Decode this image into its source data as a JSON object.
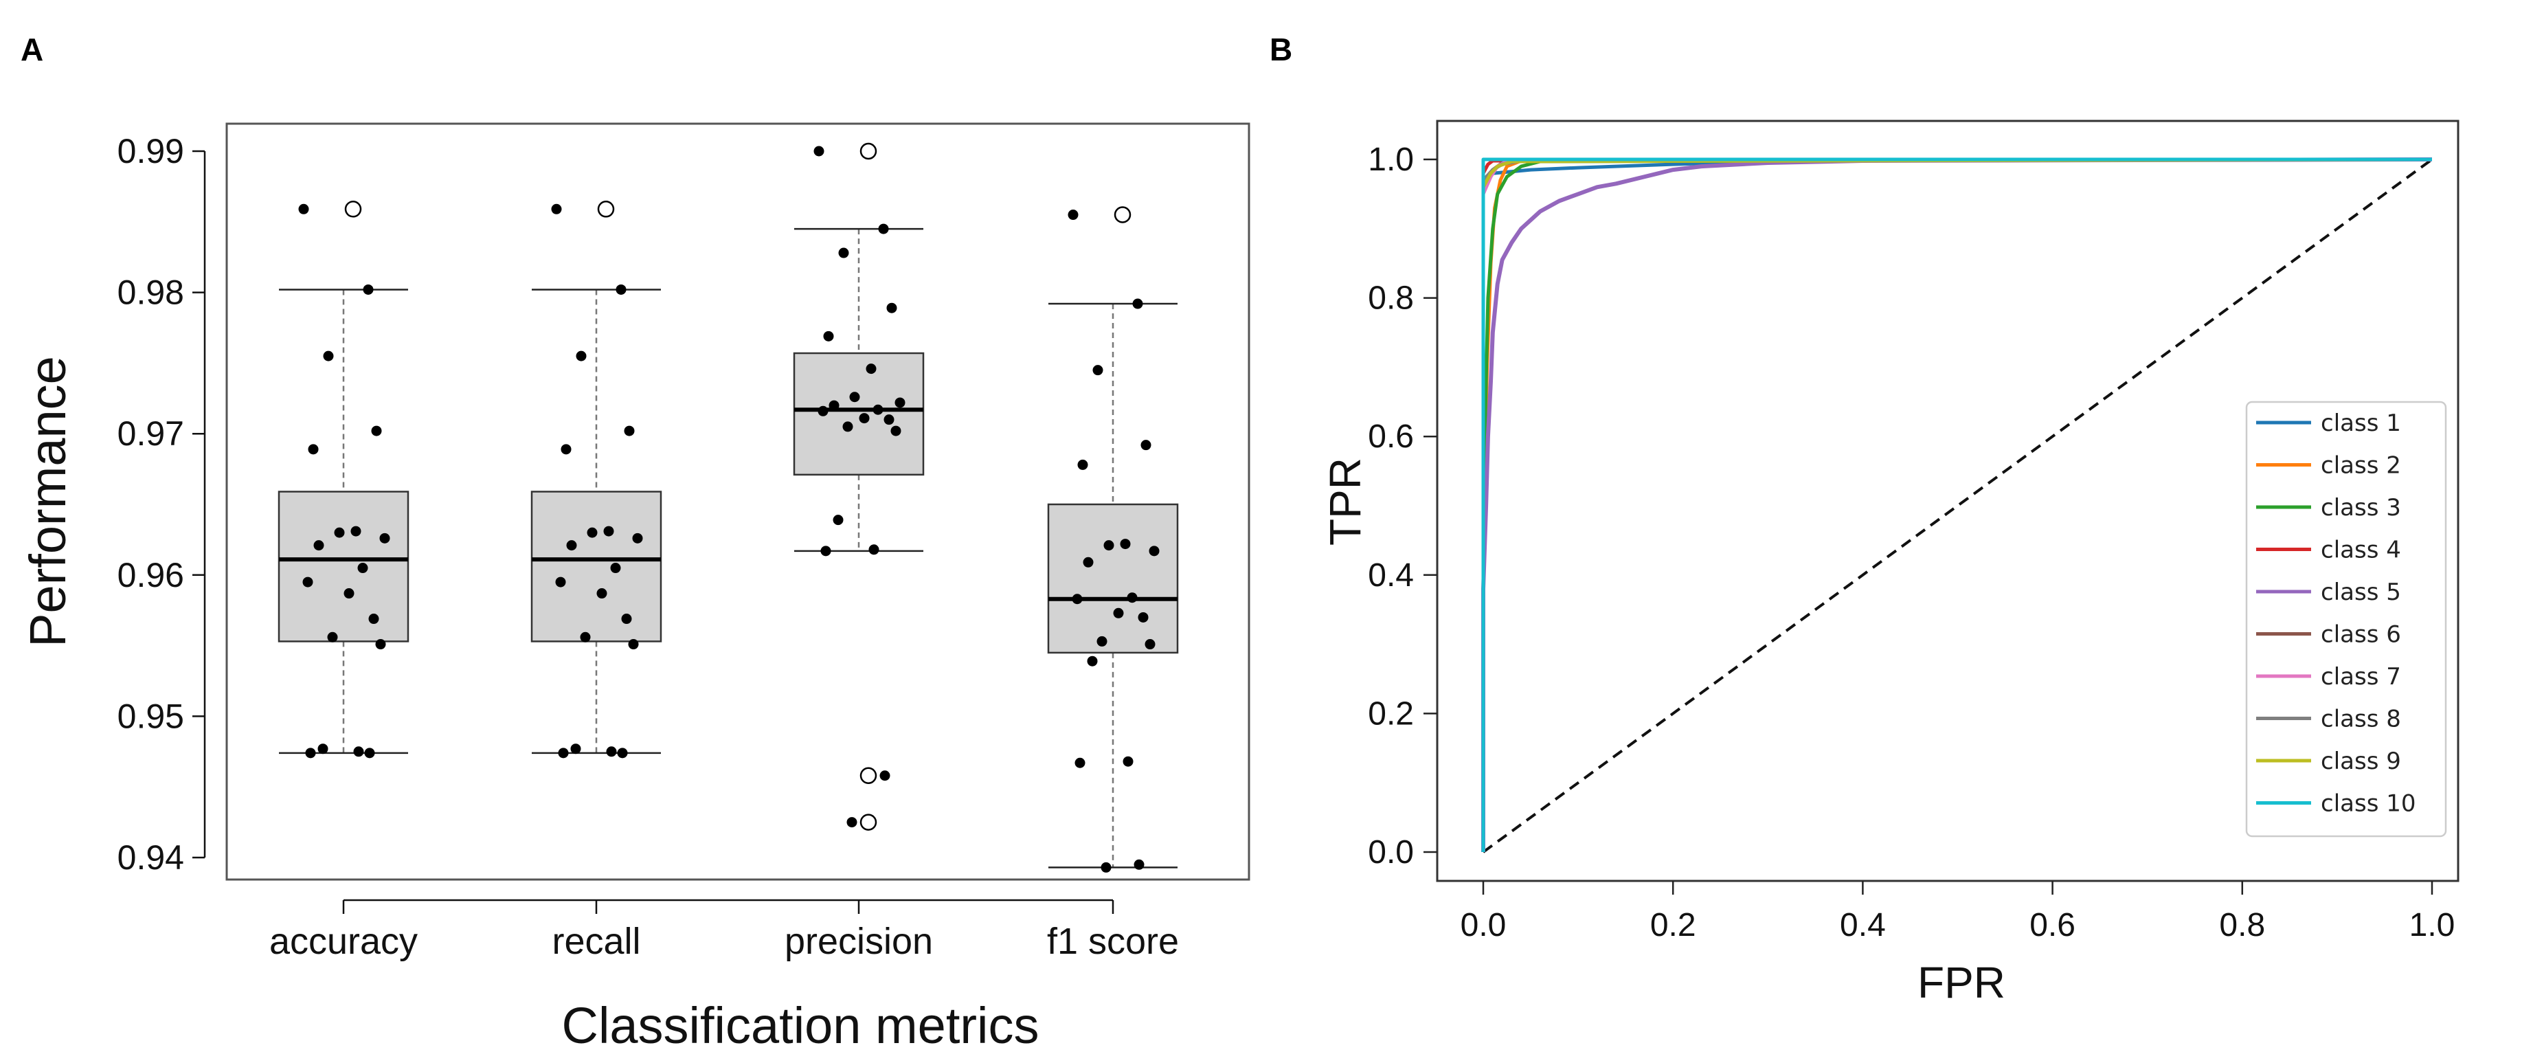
{
  "chart_data": [
    {
      "panel_label": "A",
      "type": "box",
      "xlabel": "Classification metrics",
      "ylabel": "Performance",
      "ylim": [
        0.938,
        0.992
      ],
      "yticks": [
        0.94,
        0.95,
        0.96,
        0.97,
        0.98,
        0.99
      ],
      "ytick_labels": [
        "0.94",
        "0.95",
        "0.96",
        "0.97",
        "0.98",
        "0.99"
      ],
      "grid": false,
      "categories": [
        "accuracy",
        "recall",
        "precision",
        "f1 score"
      ],
      "boxes": [
        {
          "name": "accuracy",
          "q1": 0.9553,
          "median": 0.9611,
          "q3": 0.9659,
          "whisker_low": 0.9474,
          "whisker_high": 0.9802,
          "outliers": [
            0.9859
          ],
          "points": [
            0.9859,
            0.9802,
            0.9755,
            0.9702,
            0.9689,
            0.9631,
            0.963,
            0.9626,
            0.9621,
            0.9605,
            0.9595,
            0.9587,
            0.9569,
            0.9556,
            0.9551,
            0.9477,
            0.9475,
            0.9474,
            0.9474
          ]
        },
        {
          "name": "recall",
          "q1": 0.9553,
          "median": 0.9611,
          "q3": 0.9659,
          "whisker_low": 0.9474,
          "whisker_high": 0.9802,
          "outliers": [
            0.9859
          ],
          "points": [
            0.9859,
            0.9802,
            0.9755,
            0.9702,
            0.9689,
            0.9631,
            0.963,
            0.9626,
            0.9621,
            0.9605,
            0.9595,
            0.9587,
            0.9569,
            0.9556,
            0.9551,
            0.9477,
            0.9475,
            0.9474,
            0.9474
          ]
        },
        {
          "name": "precision",
          "q1": 0.9671,
          "median": 0.9717,
          "q3": 0.9757,
          "whisker_low": 0.9617,
          "whisker_high": 0.9845,
          "outliers": [
            0.99,
            0.9458,
            0.9425
          ],
          "points": [
            0.99,
            0.9845,
            0.9828,
            0.9789,
            0.9769,
            0.9746,
            0.9726,
            0.9722,
            0.972,
            0.9717,
            0.9716,
            0.9711,
            0.971,
            0.9705,
            0.9702,
            0.9639,
            0.9618,
            0.9617,
            0.9458,
            0.9425
          ]
        },
        {
          "name": "f1 score",
          "q1": 0.9545,
          "median": 0.9583,
          "q3": 0.965,
          "whisker_low": 0.9393,
          "whisker_high": 0.9792,
          "outliers": [
            0.9855
          ],
          "points": [
            0.9855,
            0.9792,
            0.9745,
            0.9692,
            0.9678,
            0.9622,
            0.9621,
            0.9617,
            0.9609,
            0.9584,
            0.9583,
            0.9573,
            0.957,
            0.9553,
            0.9551,
            0.9539,
            0.9468,
            0.9467,
            0.9395,
            0.9393
          ]
        }
      ]
    },
    {
      "panel_label": "B",
      "type": "line",
      "xlabel": "FPR",
      "ylabel": "TPR",
      "xlim": [
        -0.05,
        1.05
      ],
      "ylim": [
        -0.05,
        1.05
      ],
      "xticks": [
        0.0,
        0.2,
        0.4,
        0.6,
        0.8,
        1.0
      ],
      "xtick_labels": [
        "0.0",
        "0.2",
        "0.4",
        "0.6",
        "0.8",
        "1.0"
      ],
      "yticks": [
        0.0,
        0.2,
        0.4,
        0.6,
        0.8,
        1.0
      ],
      "ytick_labels": [
        "0.0",
        "0.2",
        "0.4",
        "0.6",
        "0.8",
        "1.0"
      ],
      "grid": false,
      "legend_position": "center-right",
      "diagonal": [
        [
          0,
          0
        ],
        [
          1,
          1
        ]
      ],
      "series": [
        {
          "name": "class 1",
          "color": "#1f77b4",
          "points": [
            [
              0,
              0
            ],
            [
              0,
              0.97
            ],
            [
              0.01,
              0.98
            ],
            [
              0.05,
              0.985
            ],
            [
              0.1,
              0.988
            ],
            [
              0.2,
              0.993
            ],
            [
              0.3,
              0.997
            ],
            [
              0.45,
              0.999
            ],
            [
              1,
              1
            ]
          ]
        },
        {
          "name": "class 2",
          "color": "#ff7f0e",
          "points": [
            [
              0,
              0
            ],
            [
              0,
              0.45
            ],
            [
              0.004,
              0.7
            ],
            [
              0.008,
              0.85
            ],
            [
              0.012,
              0.93
            ],
            [
              0.018,
              0.97
            ],
            [
              0.025,
              0.99
            ],
            [
              0.04,
              0.998
            ],
            [
              1,
              1
            ]
          ]
        },
        {
          "name": "class 3",
          "color": "#2ca02c",
          "points": [
            [
              0,
              0
            ],
            [
              0,
              0.5
            ],
            [
              0.005,
              0.8
            ],
            [
              0.01,
              0.9
            ],
            [
              0.015,
              0.95
            ],
            [
              0.025,
              0.975
            ],
            [
              0.04,
              0.99
            ],
            [
              0.06,
              0.997
            ],
            [
              1,
              1
            ]
          ]
        },
        {
          "name": "class 4",
          "color": "#d62728",
          "points": [
            [
              0,
              0
            ],
            [
              0,
              0.98
            ],
            [
              0.005,
              0.993
            ],
            [
              0.01,
              0.998
            ],
            [
              1,
              1
            ]
          ]
        },
        {
          "name": "class 5",
          "color": "#9467bd",
          "points": [
            [
              0,
              0
            ],
            [
              0,
              0.38
            ],
            [
              0.003,
              0.5
            ],
            [
              0.005,
              0.6
            ],
            [
              0.008,
              0.68
            ],
            [
              0.01,
              0.75
            ],
            [
              0.015,
              0.82
            ],
            [
              0.02,
              0.855
            ],
            [
              0.03,
              0.88
            ],
            [
              0.04,
              0.9
            ],
            [
              0.06,
              0.925
            ],
            [
              0.08,
              0.94
            ],
            [
              0.1,
              0.95
            ],
            [
              0.12,
              0.96
            ],
            [
              0.14,
              0.965
            ],
            [
              0.17,
              0.975
            ],
            [
              0.2,
              0.985
            ],
            [
              0.23,
              0.99
            ],
            [
              0.3,
              0.995
            ],
            [
              0.4,
              0.998
            ],
            [
              1,
              1
            ]
          ]
        },
        {
          "name": "class 6",
          "color": "#8c564b",
          "points": [
            [
              0,
              0
            ],
            [
              0,
              0.96
            ],
            [
              0.01,
              0.985
            ],
            [
              0.02,
              0.995
            ],
            [
              0.03,
              1
            ],
            [
              1,
              1
            ]
          ]
        },
        {
          "name": "class 7",
          "color": "#e377c2",
          "points": [
            [
              0,
              0
            ],
            [
              0,
              0.95
            ],
            [
              0.008,
              0.975
            ],
            [
              0.015,
              0.99
            ],
            [
              0.025,
              0.998
            ],
            [
              1,
              1
            ]
          ]
        },
        {
          "name": "class 8",
          "color": "#7f7f7f",
          "points": [
            [
              0,
              0
            ],
            [
              0,
              0.97
            ],
            [
              0.01,
              0.985
            ],
            [
              0.02,
              0.993
            ],
            [
              0.04,
              0.998
            ],
            [
              1,
              1
            ]
          ]
        },
        {
          "name": "class 9",
          "color": "#bcbd22",
          "points": [
            [
              0,
              0
            ],
            [
              0,
              0.96
            ],
            [
              0.008,
              0.98
            ],
            [
              0.015,
              0.99
            ],
            [
              0.03,
              0.997
            ],
            [
              1,
              1
            ]
          ]
        },
        {
          "name": "class 10",
          "color": "#17becf",
          "points": [
            [
              0,
              0
            ],
            [
              0,
              1
            ],
            [
              1,
              1
            ]
          ]
        }
      ]
    }
  ]
}
